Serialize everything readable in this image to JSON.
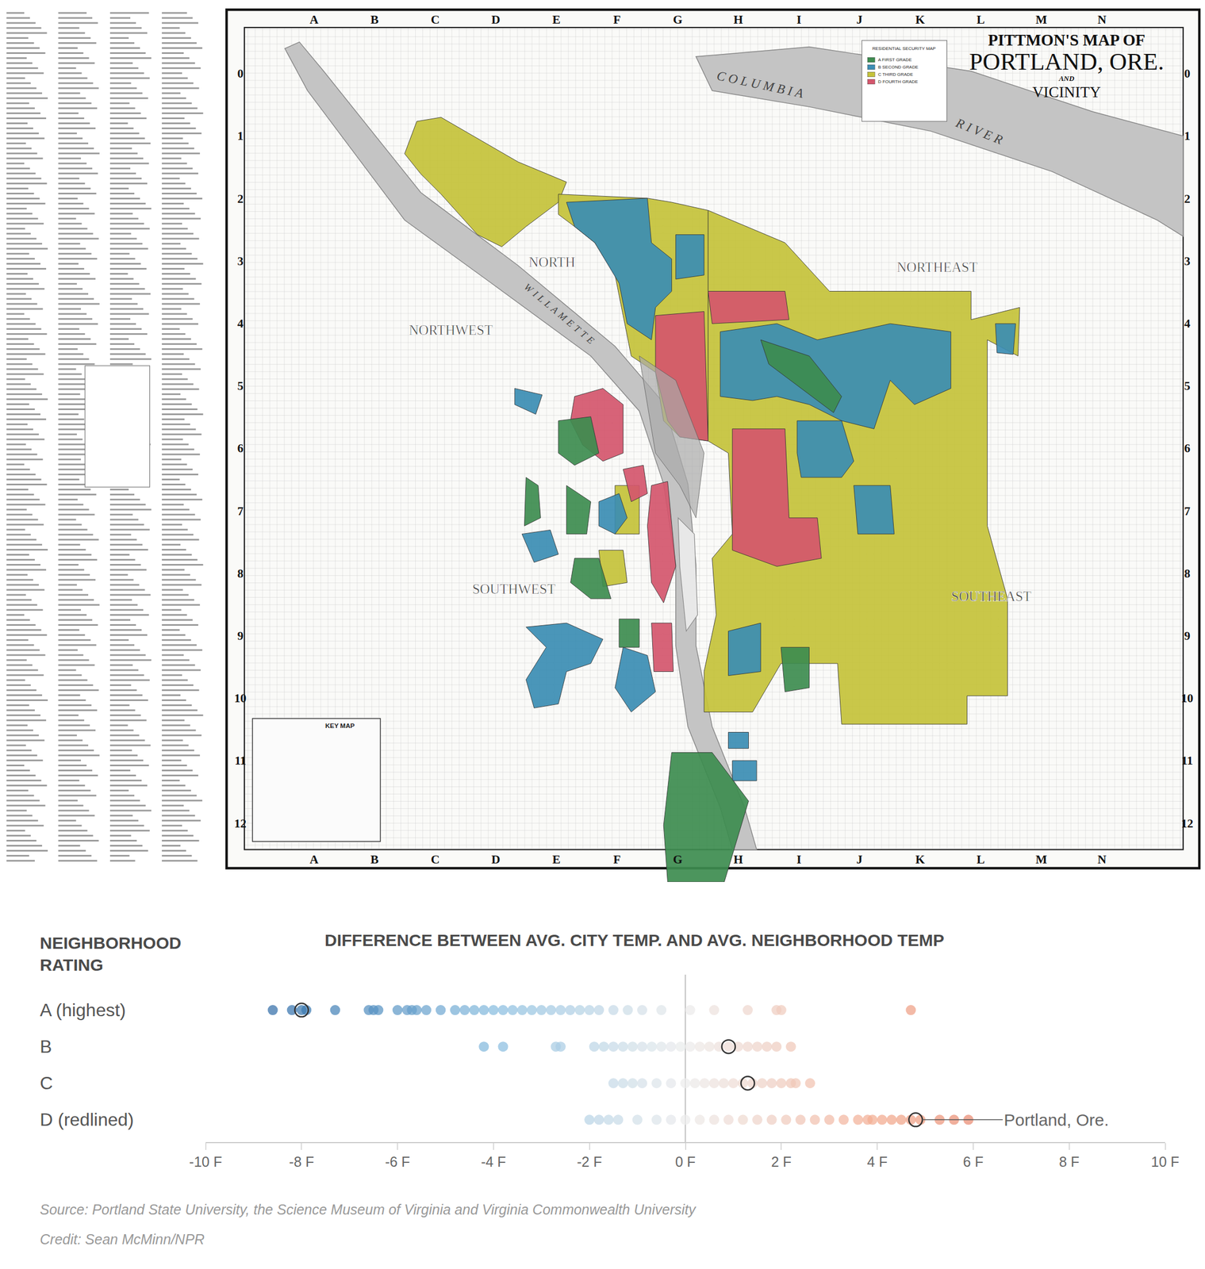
{
  "map": {
    "title": [
      "PITTMON'S MAP OF",
      "PORTLAND, ORE.",
      "AND",
      "VICINITY"
    ],
    "columns": [
      "A",
      "B",
      "C",
      "D",
      "E",
      "F",
      "G",
      "H",
      "I",
      "J",
      "K",
      "L",
      "M",
      "N"
    ],
    "rows": [
      0,
      1,
      2,
      3,
      4,
      5,
      6,
      7,
      8,
      9,
      10,
      11,
      12
    ],
    "districts": [
      "NORTH",
      "NORTHWEST",
      "NORTHEAST",
      "SOUTHWEST",
      "SOUTHEAST"
    ],
    "rivers": [
      "COLUMBIA",
      "RIVER",
      "WILLAMETTE"
    ],
    "key_map": "KEY MAP",
    "legend": {
      "title": "RESIDENTIAL SECURITY MAP",
      "grades": [
        {
          "label": "A FIRST GRADE",
          "color": "#3d8c4f"
        },
        {
          "label": "B SECOND GRADE",
          "color": "#3b8db3"
        },
        {
          "label": "C THIRD GRADE",
          "color": "#c4c23a"
        },
        {
          "label": "D FOURTH GRADE",
          "color": "#d4566c"
        }
      ]
    }
  },
  "chart_data": {
    "type": "scatter",
    "title": "DIFFERENCE BETWEEN AVG. CITY TEMP. AND AVG. NEIGHBORHOOD TEMP",
    "y_label": "NEIGHBORHOOD RATING",
    "categories": [
      "A (highest)",
      "B",
      "C",
      "D (redlined)"
    ],
    "values": [
      [
        -8.6,
        -8.2,
        -8.0,
        -7.9,
        -7.3,
        -6.6,
        -6.5,
        -6.4,
        -6.0,
        -5.8,
        -5.7,
        -5.6,
        -5.4,
        -5.1,
        -4.8,
        -4.6,
        -4.4,
        -4.2,
        -4.0,
        -3.8,
        -3.6,
        -3.4,
        -3.2,
        -3.0,
        -2.8,
        -2.6,
        -2.4,
        -2.2,
        -2.0,
        -1.8,
        -1.5,
        -1.2,
        -0.9,
        -0.5,
        0.1,
        0.6,
        1.3,
        1.9,
        2.0,
        4.7
      ],
      [
        -4.2,
        -3.8,
        -2.7,
        -2.6,
        -1.9,
        -1.7,
        -1.5,
        -1.3,
        -1.1,
        -0.9,
        -0.7,
        -0.5,
        -0.3,
        -0.1,
        0.1,
        0.3,
        0.5,
        0.7,
        0.9,
        1.1,
        1.3,
        1.5,
        1.7,
        1.9,
        2.2
      ],
      [
        -1.5,
        -1.3,
        -1.1,
        -0.9,
        -0.6,
        -0.3,
        0.0,
        0.2,
        0.4,
        0.6,
        0.8,
        1.0,
        1.2,
        1.4,
        1.6,
        1.8,
        2.0,
        2.2,
        2.3,
        2.6
      ],
      [
        -2.0,
        -1.8,
        -1.6,
        -1.4,
        -1.0,
        -0.6,
        -0.3,
        0.0,
        0.3,
        0.6,
        0.9,
        1.2,
        1.5,
        1.8,
        2.1,
        2.4,
        2.7,
        3.0,
        3.3,
        3.6,
        3.8,
        3.9,
        4.1,
        4.3,
        4.5,
        4.7,
        4.9,
        5.3,
        5.6,
        5.9
      ]
    ],
    "highlight": {
      "name": "Portland, Ore.",
      "values": [
        -8.0,
        0.9,
        1.3,
        4.8
      ]
    },
    "xlim": [
      -10,
      10
    ],
    "xticks": [
      {
        "value": -10,
        "label": "-10 F"
      },
      {
        "value": -8,
        "label": "-8 F"
      },
      {
        "value": -6,
        "label": "-6 F"
      },
      {
        "value": -4,
        "label": "-4 F"
      },
      {
        "value": -2,
        "label": "-2 F"
      },
      {
        "value": 0,
        "label": "0 F"
      },
      {
        "value": 2,
        "label": "2 F"
      },
      {
        "value": 4,
        "label": "4 F"
      },
      {
        "value": 6,
        "label": "6 F"
      },
      {
        "value": 8,
        "label": "8 F"
      },
      {
        "value": 10,
        "label": "10 F"
      }
    ],
    "grid": false,
    "tick_labels": "x",
    "source": "Source: Portland State University, the Science Museum of Virginia and Virginia Commonwealth University",
    "credit": "Credit: Sean McMinn/NPR"
  }
}
